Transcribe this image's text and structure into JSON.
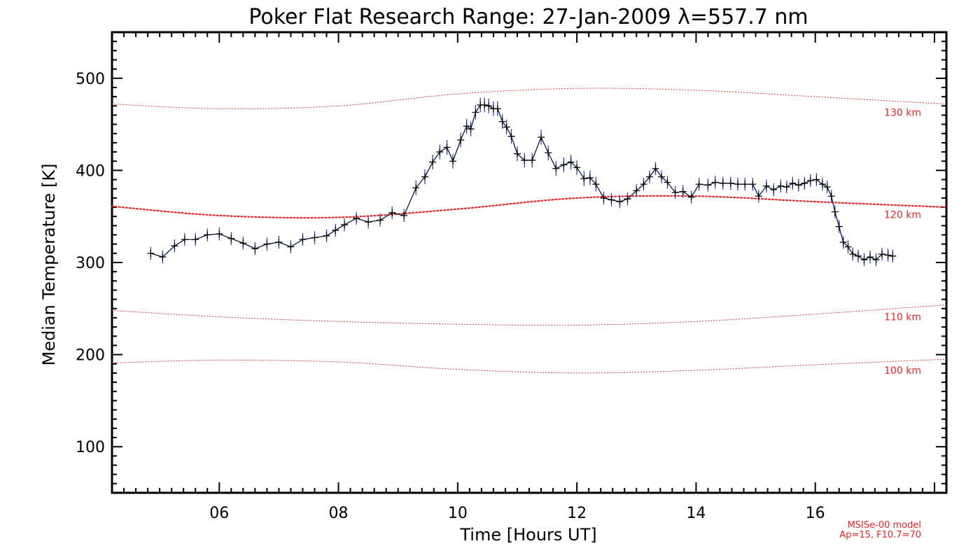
{
  "chart_data": {
    "type": "line",
    "title": "Poker Flat Research Range: 27-Jan-2009 λ=557.7 nm",
    "xlabel": "Time [Hours UT]",
    "ylabel": "Median Temperature [K]",
    "xlim": [
      4.2,
      18.2
    ],
    "ylim": [
      50,
      550
    ],
    "x_ticks": [
      6,
      8,
      10,
      12,
      14,
      16
    ],
    "x_tick_labels": [
      "06",
      "08",
      "10",
      "12",
      "14",
      "16"
    ],
    "y_ticks": [
      100,
      200,
      300,
      400,
      500
    ],
    "y_tick_labels": [
      "100",
      "200",
      "300",
      "400",
      "500"
    ],
    "grid": false,
    "colors": {
      "data_line": "#0a1a3a",
      "error_bar": "#2233cc",
      "marker": "#000000",
      "model": "#ee2222"
    },
    "series": [
      {
        "name": "Median Temperature",
        "x": [
          4.85,
          5.05,
          5.25,
          5.42,
          5.6,
          5.8,
          6.0,
          6.2,
          6.4,
          6.6,
          6.8,
          7.0,
          7.2,
          7.4,
          7.6,
          7.8,
          7.95,
          8.1,
          8.3,
          8.5,
          8.7,
          8.9,
          9.1,
          9.3,
          9.45,
          9.58,
          9.7,
          9.82,
          9.92,
          10.05,
          10.15,
          10.22,
          10.3,
          10.38,
          10.45,
          10.52,
          10.6,
          10.67,
          10.75,
          10.82,
          10.9,
          11.0,
          11.12,
          11.25,
          11.4,
          11.52,
          11.65,
          11.78,
          11.9,
          12.0,
          12.12,
          12.22,
          12.32,
          12.45,
          12.58,
          12.72,
          12.85,
          13.0,
          13.12,
          13.22,
          13.32,
          13.42,
          13.52,
          13.65,
          13.78,
          13.92,
          14.05,
          14.2,
          14.32,
          14.45,
          14.58,
          14.7,
          14.82,
          14.95,
          15.05,
          15.18,
          15.3,
          15.42,
          15.52,
          15.62,
          15.72,
          15.82,
          15.92,
          16.02,
          16.12,
          16.2,
          16.27,
          16.33,
          16.4,
          16.47,
          16.55,
          16.63,
          16.72,
          16.82,
          16.92,
          17.02,
          17.12,
          17.22,
          17.3
        ],
        "values": [
          310,
          306,
          318,
          325,
          325,
          330,
          331,
          326,
          321,
          315,
          320,
          322,
          317,
          325,
          327,
          329,
          335,
          341,
          348,
          344,
          346,
          354,
          351,
          381,
          393,
          409,
          420,
          425,
          410,
          433,
          448,
          445,
          463,
          471,
          471,
          470,
          467,
          467,
          453,
          447,
          437,
          418,
          411,
          411,
          436,
          419,
          402,
          406,
          409,
          403,
          391,
          392,
          385,
          370,
          368,
          366,
          369,
          378,
          385,
          393,
          402,
          393,
          387,
          376,
          377,
          371,
          385,
          384,
          387,
          386,
          386,
          385,
          385,
          385,
          372,
          383,
          379,
          383,
          382,
          386,
          384,
          386,
          389,
          390,
          385,
          382,
          372,
          355,
          339,
          322,
          317,
          309,
          307,
          303,
          306,
          303,
          309,
          308,
          307
        ],
        "error": [
          7,
          7,
          7,
          7,
          7,
          7,
          7,
          7,
          7,
          7,
          7,
          7,
          7,
          7,
          7,
          7,
          7,
          7,
          7,
          7,
          7,
          7,
          7,
          8,
          8,
          8,
          8,
          8,
          8,
          8,
          8,
          8,
          8,
          8,
          8,
          8,
          8,
          8,
          8,
          8,
          8,
          8,
          8,
          8,
          8,
          8,
          8,
          8,
          8,
          8,
          8,
          8,
          8,
          7,
          7,
          7,
          7,
          7,
          7,
          7,
          7,
          7,
          7,
          7,
          7,
          7,
          7,
          7,
          7,
          7,
          7,
          7,
          7,
          7,
          7,
          7,
          7,
          7,
          7,
          7,
          7,
          7,
          7,
          7,
          7,
          7,
          7,
          7,
          7,
          7,
          7,
          7,
          7,
          7,
          7,
          7,
          7,
          7,
          7
        ]
      }
    ],
    "model_curves": [
      {
        "label": "130 km",
        "x": [
          4.2,
          6.0,
          8.0,
          10.0,
          12.0,
          14.0,
          16.0,
          18.2
        ],
        "values": [
          472,
          467,
          470,
          483,
          489,
          487,
          480,
          472
        ],
        "emphasized": false
      },
      {
        "label": "120 km",
        "x": [
          4.2,
          6.0,
          8.0,
          10.0,
          12.0,
          14.0,
          16.0,
          18.2
        ],
        "values": [
          361,
          351,
          349,
          358,
          370,
          372,
          366,
          360
        ],
        "emphasized": true
      },
      {
        "label": "110 km",
        "x": [
          4.2,
          6.0,
          8.0,
          10.0,
          12.0,
          14.0,
          16.0,
          18.2
        ],
        "values": [
          248,
          241,
          236,
          233,
          232,
          236,
          244,
          254
        ],
        "emphasized": false
      },
      {
        "label": "100 km",
        "x": [
          4.2,
          6.0,
          8.0,
          10.0,
          12.0,
          14.0,
          16.0,
          18.2
        ],
        "values": [
          191,
          194,
          192,
          184,
          180,
          183,
          189,
          195
        ],
        "emphasized": false
      }
    ],
    "model_label_y": [
      463,
      352,
      241,
      183
    ],
    "footnote": [
      "MSISe-00 model",
      "Ap=15, F10.7=70"
    ]
  }
}
